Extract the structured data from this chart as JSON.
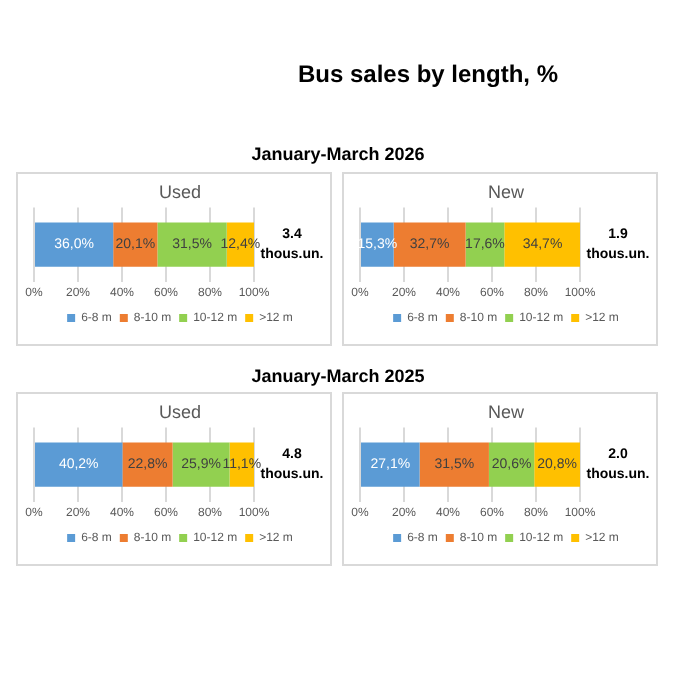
{
  "chart_data": [
    {
      "type": "other",
      "title": "Bus sales by length, %"
    },
    {
      "type": "other",
      "title": "January-March 2026"
    },
    {
      "type": "bar",
      "annotations": [
        "Used",
        "3.4 thous.un."
      ],
      "orientation": "horizontal",
      "stacked": true,
      "categories": [
        null
      ],
      "xlim": [
        0,
        100
      ],
      "xticks": [
        {
          "value": 0,
          "label": "0%"
        },
        {
          "value": 20,
          "label": "20%"
        },
        {
          "value": 40,
          "label": "40%"
        },
        {
          "value": 60,
          "label": "60%"
        },
        {
          "value": 80,
          "label": "80%"
        },
        {
          "value": 100,
          "label": "100%"
        }
      ],
      "grid": "x",
      "legend": "bottom",
      "series": [
        {
          "name": "6-8 m",
          "color": "#5b9bd5",
          "values": [
            36.0
          ],
          "value_labels": [
            "36,0%"
          ]
        },
        {
          "name": "8-10 m",
          "color": "#ed7d31",
          "values": [
            20.1
          ],
          "value_labels": [
            "20,1%"
          ]
        },
        {
          "name": "10-12 m",
          "color": "#92d050",
          "values": [
            31.5
          ],
          "value_labels": [
            "31,5%"
          ]
        },
        {
          "name": ">12 m",
          "color": "#ffc000",
          "values": [
            12.4
          ],
          "value_labels": [
            "12,4%"
          ]
        }
      ]
    },
    {
      "type": "bar",
      "annotations": [
        "New",
        "1.9 thous.un."
      ],
      "orientation": "horizontal",
      "stacked": true,
      "categories": [
        null
      ],
      "xlim": [
        0,
        100
      ],
      "xticks": [
        {
          "value": 0,
          "label": "0%"
        },
        {
          "value": 20,
          "label": "20%"
        },
        {
          "value": 40,
          "label": "40%"
        },
        {
          "value": 60,
          "label": "60%"
        },
        {
          "value": 80,
          "label": "80%"
        },
        {
          "value": 100,
          "label": "100%"
        }
      ],
      "grid": "x",
      "legend": "bottom",
      "series": [
        {
          "name": "6-8 m",
          "color": "#5b9bd5",
          "values": [
            15.3
          ],
          "value_labels": [
            "15,3%"
          ]
        },
        {
          "name": "8-10 m",
          "color": "#ed7d31",
          "values": [
            32.7
          ],
          "value_labels": [
            "32,7%"
          ]
        },
        {
          "name": "10-12 m",
          "color": "#92d050",
          "values": [
            17.6
          ],
          "value_labels": [
            "17,6%"
          ]
        },
        {
          "name": ">12 m",
          "color": "#ffc000",
          "values": [
            34.7
          ],
          "value_labels": [
            "34,7%"
          ]
        }
      ]
    },
    {
      "type": "other",
      "title": "January-March 2025"
    },
    {
      "type": "bar",
      "annotations": [
        "Used",
        "4.8 thous.un."
      ],
      "orientation": "horizontal",
      "stacked": true,
      "categories": [
        null
      ],
      "xlim": [
        0,
        100
      ],
      "xticks": [
        {
          "value": 0,
          "label": "0%"
        },
        {
          "value": 20,
          "label": "20%"
        },
        {
          "value": 40,
          "label": "40%"
        },
        {
          "value": 60,
          "label": "60%"
        },
        {
          "value": 80,
          "label": "80%"
        },
        {
          "value": 100,
          "label": "100%"
        }
      ],
      "grid": "x",
      "legend": "bottom",
      "series": [
        {
          "name": "6-8 m",
          "color": "#5b9bd5",
          "values": [
            40.2
          ],
          "value_labels": [
            "40,2%"
          ]
        },
        {
          "name": "8-10 m",
          "color": "#ed7d31",
          "values": [
            22.8
          ],
          "value_labels": [
            "22,8%"
          ]
        },
        {
          "name": "10-12 m",
          "color": "#92d050",
          "values": [
            25.9
          ],
          "value_labels": [
            "25,9%"
          ]
        },
        {
          "name": ">12 m",
          "color": "#ffc000",
          "values": [
            11.1
          ],
          "value_labels": [
            "11,1%"
          ]
        }
      ]
    },
    {
      "type": "bar",
      "annotations": [
        "New",
        "2.0 thous.un."
      ],
      "orientation": "horizontal",
      "stacked": true,
      "categories": [
        null
      ],
      "xlim": [
        0,
        100
      ],
      "xticks": [
        {
          "value": 0,
          "label": "0%"
        },
        {
          "value": 20,
          "label": "20%"
        },
        {
          "value": 40,
          "label": "40%"
        },
        {
          "value": 60,
          "label": "60%"
        },
        {
          "value": 80,
          "label": "80%"
        },
        {
          "value": 100,
          "label": "100%"
        }
      ],
      "grid": "x",
      "legend": "bottom",
      "series": [
        {
          "name": "6-8 m",
          "color": "#5b9bd5",
          "values": [
            27.1
          ],
          "value_labels": [
            "27,1%"
          ]
        },
        {
          "name": "8-10 m",
          "color": "#ed7d31",
          "values": [
            31.5
          ],
          "value_labels": [
            "31,5%"
          ]
        },
        {
          "name": "10-12 m",
          "color": "#92d050",
          "values": [
            20.6
          ],
          "value_labels": [
            "20,6%"
          ]
        },
        {
          "name": ">12 m",
          "color": "#ffc000",
          "values": [
            20.8
          ],
          "value_labels": [
            "20,8%"
          ]
        }
      ]
    }
  ]
}
